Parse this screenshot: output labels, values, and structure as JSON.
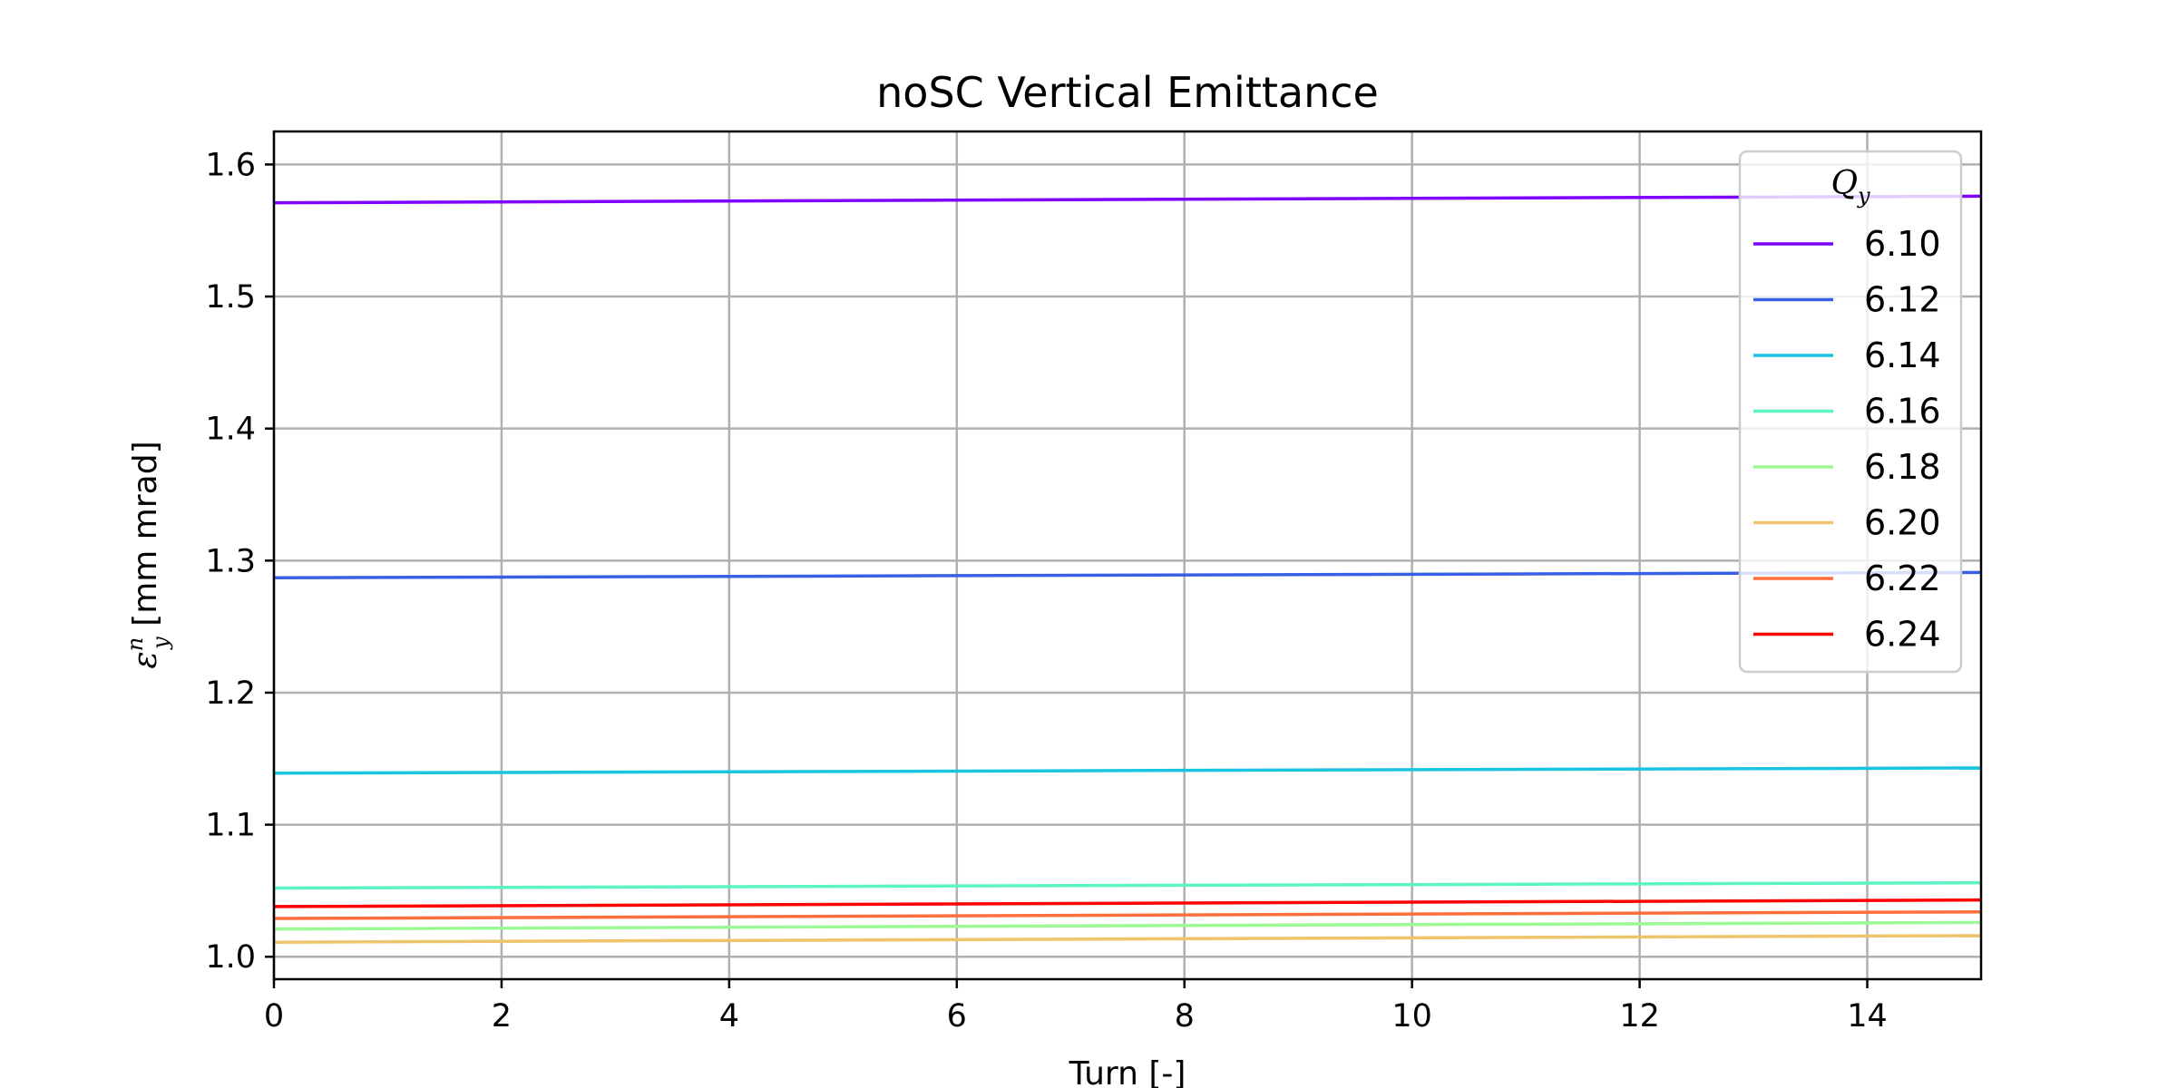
{
  "chart_data": {
    "type": "line",
    "title": "noSC Vertical Emittance",
    "xlabel": "Turn [-]",
    "ylabel": {
      "symbol": "ε",
      "superscript": "n",
      "subscript": "y",
      "unit": " [mm mrad]"
    },
    "xlim": [
      0,
      15
    ],
    "ylim": [
      0.983,
      1.625
    ],
    "xticks": [
      0,
      2,
      4,
      6,
      8,
      10,
      12,
      14
    ],
    "yticks": [
      1.0,
      1.1,
      1.2,
      1.3,
      1.4,
      1.5,
      1.6
    ],
    "grid": true,
    "legend": {
      "position": "top-right",
      "title_symbol": "Q",
      "title_subscript": "y"
    },
    "x": [
      0,
      15
    ],
    "series": [
      {
        "name": "6.10",
        "color": "#7f00ff",
        "values": [
          1.571,
          1.576
        ]
      },
      {
        "name": "6.12",
        "color": "#3860e6",
        "values": [
          1.287,
          1.291
        ]
      },
      {
        "name": "6.14",
        "color": "#1ac4e0",
        "values": [
          1.139,
          1.143
        ]
      },
      {
        "name": "6.16",
        "color": "#5bf4c6",
        "values": [
          1.052,
          1.056
        ]
      },
      {
        "name": "6.18",
        "color": "#9cfa96",
        "values": [
          1.021,
          1.026
        ]
      },
      {
        "name": "6.20",
        "color": "#eec46c",
        "values": [
          1.011,
          1.016
        ]
      },
      {
        "name": "6.22",
        "color": "#ff6e3a",
        "values": [
          1.029,
          1.034
        ]
      },
      {
        "name": "6.24",
        "color": "#ff0000",
        "values": [
          1.038,
          1.043
        ]
      }
    ]
  }
}
